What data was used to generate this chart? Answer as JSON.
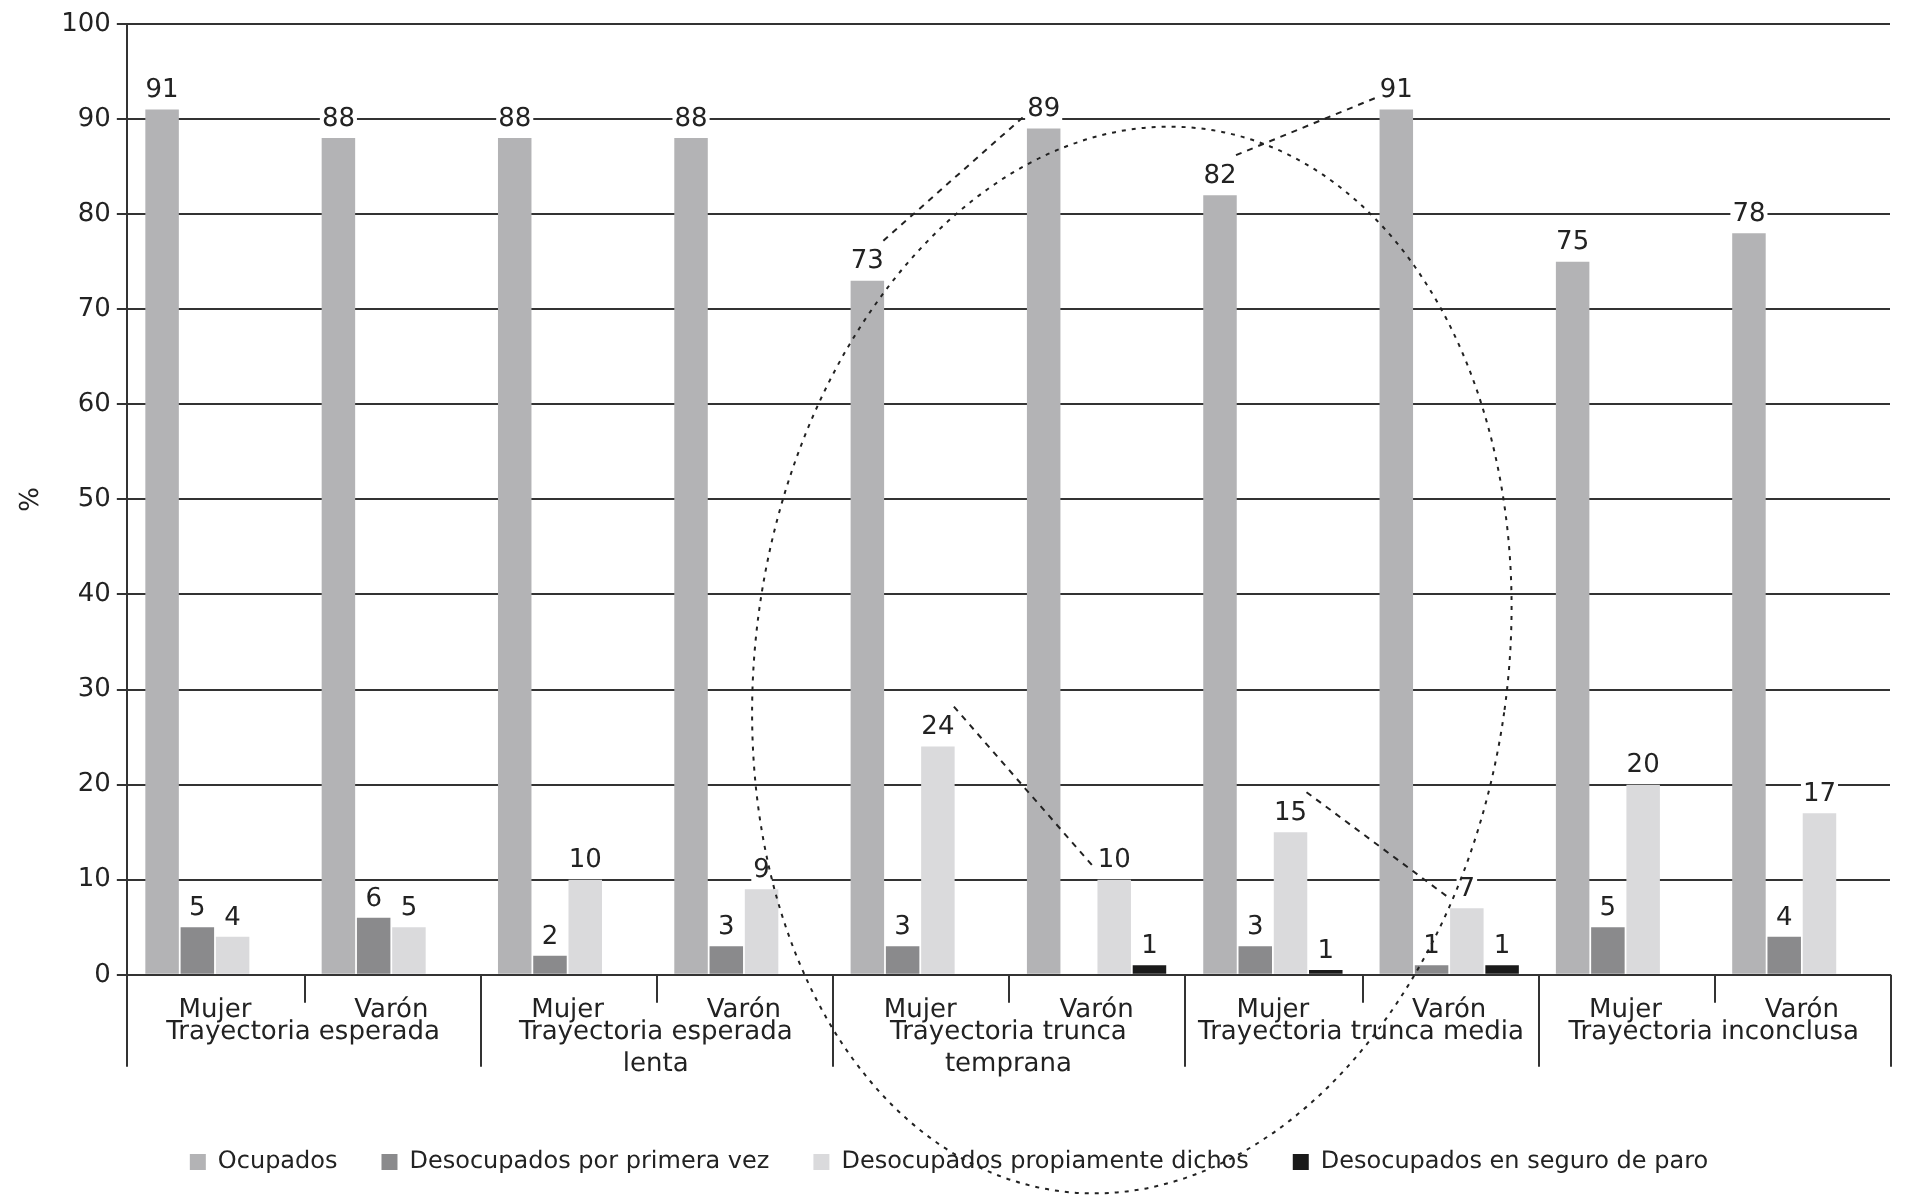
{
  "chart_data": {
    "type": "bar",
    "ylabel": "%",
    "categories": [
      "Mujer",
      "Varón",
      "Mujer",
      "Varón",
      "Mujer",
      "Varón",
      "Mujer",
      "Varón",
      "Mujer",
      "Varón"
    ],
    "annotations": [
      "Trayectoria esperada",
      "Trayectoria esperada lenta",
      "Trayectoria trunca temprana",
      "Trayectoria trunca media",
      "Trayectoria inconclusa"
    ],
    "series": [
      {
        "name": "Ocupados",
        "color": "#b3b3b5",
        "values": [
          91,
          88,
          88,
          88,
          73,
          89,
          82,
          91,
          75,
          78
        ],
        "value_labels": [
          "91",
          "88",
          "88",
          "88",
          "73",
          "89",
          "82",
          "91",
          "75",
          "78"
        ]
      },
      {
        "name": "Desocupados por primera vez",
        "color": "#8a8a8c",
        "values": [
          5,
          6,
          2,
          3,
          3,
          null,
          3,
          1,
          5,
          4
        ],
        "value_labels": [
          "5",
          "6",
          "2",
          "3",
          "3",
          null,
          "3",
          "1",
          "5",
          "4"
        ]
      },
      {
        "name": "Desocupados propiamente dichos",
        "color": "#dadadc",
        "values": [
          4,
          5,
          10,
          9,
          24,
          10,
          15,
          7,
          20,
          17
        ],
        "value_labels": [
          "4",
          "5",
          "10",
          "9",
          "24",
          "10",
          "15",
          "7",
          "20",
          "17"
        ]
      },
      {
        "name": "Desocupados en seguro de paro",
        "color": "#1a1a1a",
        "values": [
          null,
          null,
          null,
          null,
          null,
          1,
          0.5,
          1,
          null,
          null
        ],
        "value_labels": [
          null,
          null,
          null,
          null,
          null,
          "1",
          "1",
          "1",
          null,
          null
        ]
      }
    ],
    "ylim": [
      0,
      100
    ],
    "yticks": [
      0,
      10,
      20,
      30,
      40,
      50,
      60,
      70,
      80,
      90,
      100
    ],
    "grid": "y",
    "legend": "bottom"
  }
}
